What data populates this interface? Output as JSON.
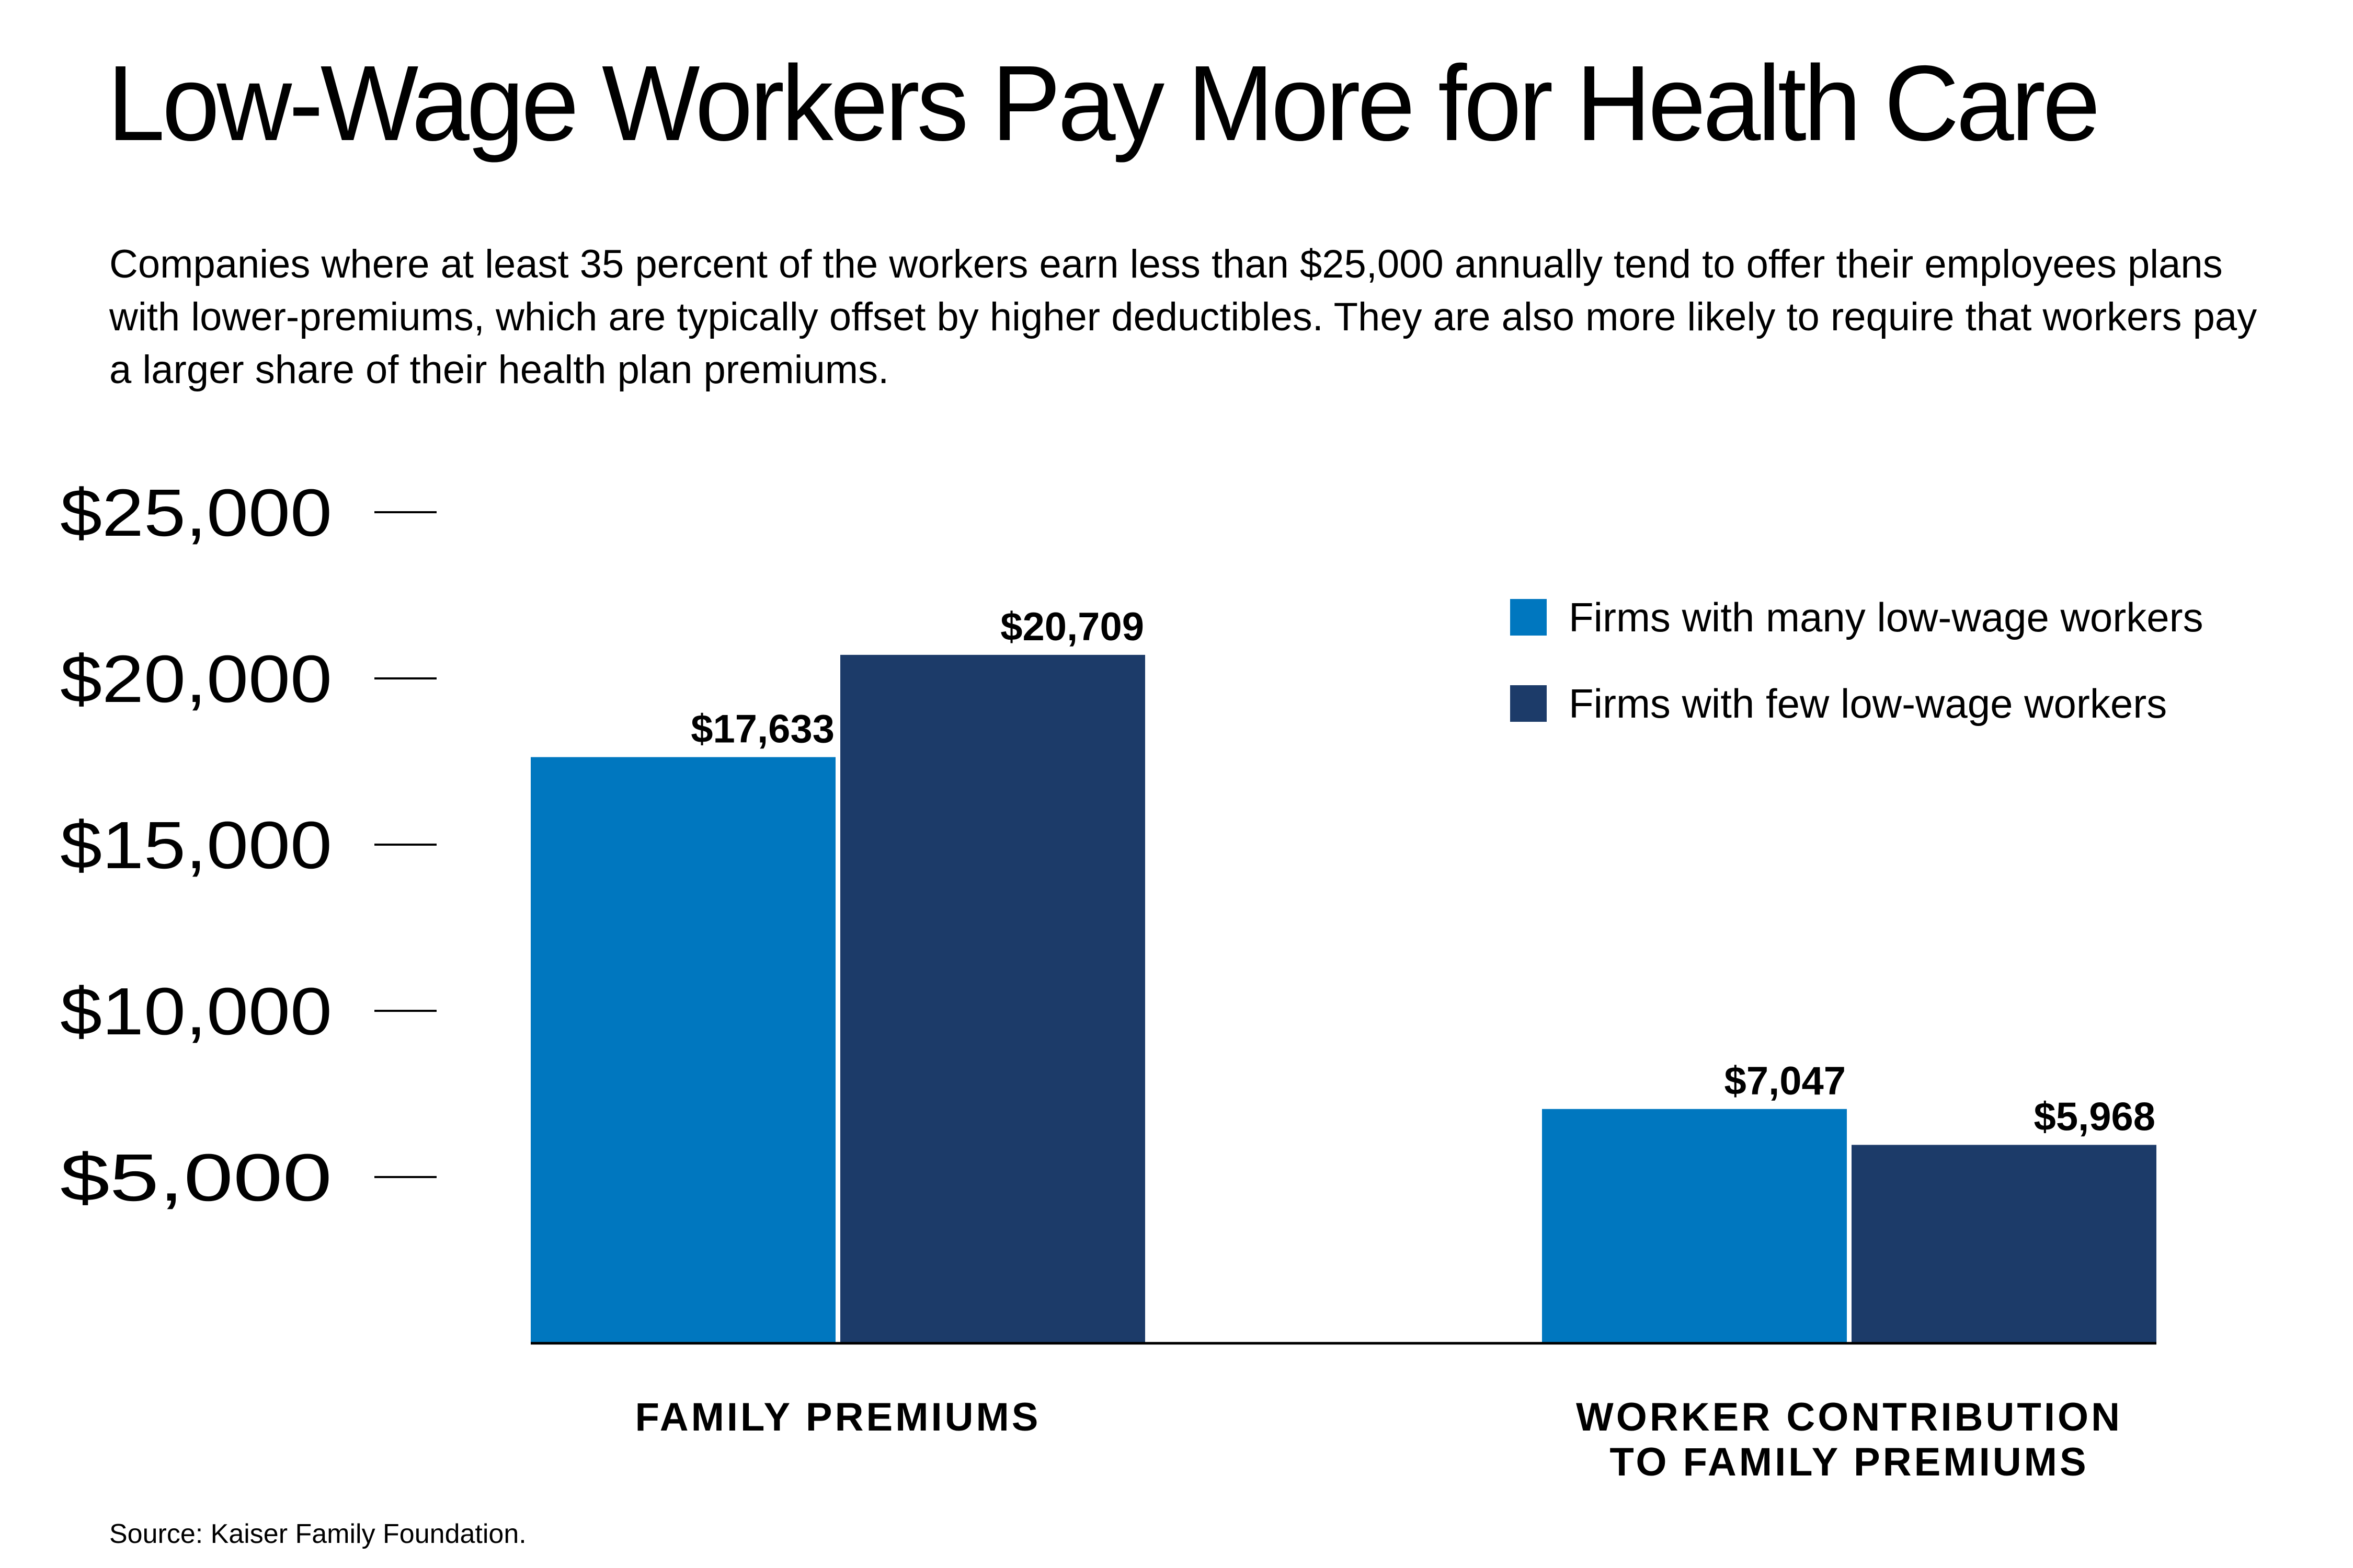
{
  "title": "Low-Wage Workers Pay More for Health Care",
  "subtitle": "Companies where at least 35 percent of the workers earn less than $25,000 annually tend to offer their employees plans with lower-premiums, which are typically offset by higher deductibles. They are also more likely to require that workers pay a larger share of their health plan premiums.",
  "source": "Source: Kaiser Family Foundation.",
  "chart_data": {
    "type": "bar",
    "title": "Low-Wage Workers Pay More for Health Care",
    "xlabel": "",
    "ylabel": "",
    "ylim": [
      0,
      25000
    ],
    "yticks": [
      5000,
      10000,
      15000,
      20000,
      25000
    ],
    "ytick_labels": [
      "$5,000",
      "$10,000",
      "$15,000",
      "$20,000",
      "$25,000"
    ],
    "categories": [
      [
        "FAMILY PREMIUMS"
      ],
      [
        "WORKER CONTRIBUTION",
        "TO FAMILY PREMIUMS"
      ]
    ],
    "series": [
      {
        "name": "Firms with many low-wage workers",
        "color": "#0077BF",
        "values": [
          17633,
          7047
        ],
        "labels": [
          "$17,633",
          "$7,047"
        ]
      },
      {
        "name": "Firms with few low-wage workers",
        "color": "#1C3B69",
        "values": [
          20709,
          5968
        ],
        "labels": [
          "$20,709",
          "$5,968"
        ]
      }
    ],
    "legend": "top-right",
    "grid": false
  }
}
